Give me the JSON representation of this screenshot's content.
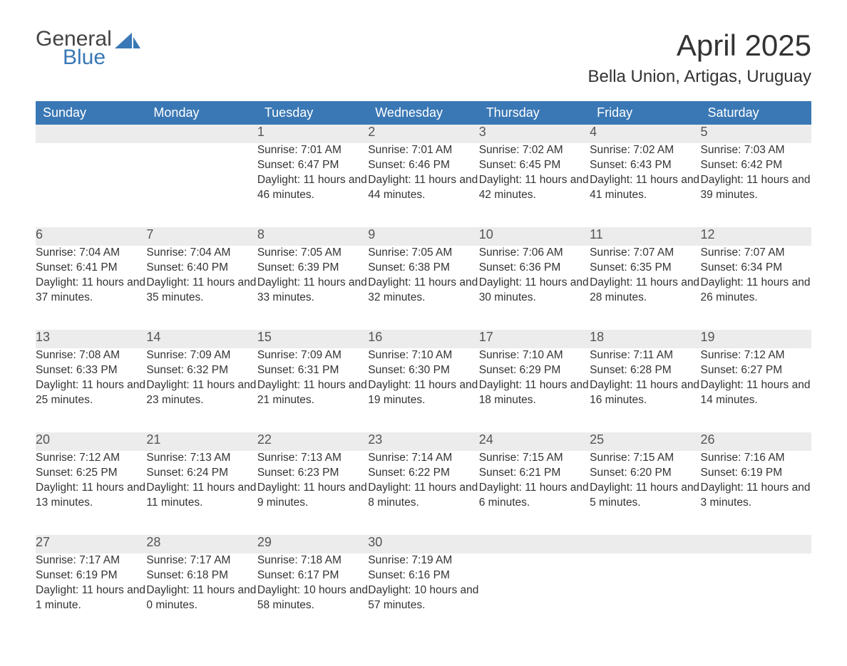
{
  "logo": {
    "line1": "General",
    "line2": "Blue"
  },
  "title": "April 2025",
  "subtitle": "Bella Union, Artigas, Uruguay",
  "colors": {
    "header_bg": "#3a78b5",
    "header_text": "#ffffff",
    "daynum_bg": "#ececec",
    "daynum_border": "#3a78b5",
    "body_text": "#333333",
    "page_bg": "#ffffff"
  },
  "day_headers": [
    "Sunday",
    "Monday",
    "Tuesday",
    "Wednesday",
    "Thursday",
    "Friday",
    "Saturday"
  ],
  "weeks": [
    [
      null,
      null,
      {
        "n": "1",
        "sunrise": "7:01 AM",
        "sunset": "6:47 PM",
        "daylight": "11 hours and 46 minutes."
      },
      {
        "n": "2",
        "sunrise": "7:01 AM",
        "sunset": "6:46 PM",
        "daylight": "11 hours and 44 minutes."
      },
      {
        "n": "3",
        "sunrise": "7:02 AM",
        "sunset": "6:45 PM",
        "daylight": "11 hours and 42 minutes."
      },
      {
        "n": "4",
        "sunrise": "7:02 AM",
        "sunset": "6:43 PM",
        "daylight": "11 hours and 41 minutes."
      },
      {
        "n": "5",
        "sunrise": "7:03 AM",
        "sunset": "6:42 PM",
        "daylight": "11 hours and 39 minutes."
      }
    ],
    [
      {
        "n": "6",
        "sunrise": "7:04 AM",
        "sunset": "6:41 PM",
        "daylight": "11 hours and 37 minutes."
      },
      {
        "n": "7",
        "sunrise": "7:04 AM",
        "sunset": "6:40 PM",
        "daylight": "11 hours and 35 minutes."
      },
      {
        "n": "8",
        "sunrise": "7:05 AM",
        "sunset": "6:39 PM",
        "daylight": "11 hours and 33 minutes."
      },
      {
        "n": "9",
        "sunrise": "7:05 AM",
        "sunset": "6:38 PM",
        "daylight": "11 hours and 32 minutes."
      },
      {
        "n": "10",
        "sunrise": "7:06 AM",
        "sunset": "6:36 PM",
        "daylight": "11 hours and 30 minutes."
      },
      {
        "n": "11",
        "sunrise": "7:07 AM",
        "sunset": "6:35 PM",
        "daylight": "11 hours and 28 minutes."
      },
      {
        "n": "12",
        "sunrise": "7:07 AM",
        "sunset": "6:34 PM",
        "daylight": "11 hours and 26 minutes."
      }
    ],
    [
      {
        "n": "13",
        "sunrise": "7:08 AM",
        "sunset": "6:33 PM",
        "daylight": "11 hours and 25 minutes."
      },
      {
        "n": "14",
        "sunrise": "7:09 AM",
        "sunset": "6:32 PM",
        "daylight": "11 hours and 23 minutes."
      },
      {
        "n": "15",
        "sunrise": "7:09 AM",
        "sunset": "6:31 PM",
        "daylight": "11 hours and 21 minutes."
      },
      {
        "n": "16",
        "sunrise": "7:10 AM",
        "sunset": "6:30 PM",
        "daylight": "11 hours and 19 minutes."
      },
      {
        "n": "17",
        "sunrise": "7:10 AM",
        "sunset": "6:29 PM",
        "daylight": "11 hours and 18 minutes."
      },
      {
        "n": "18",
        "sunrise": "7:11 AM",
        "sunset": "6:28 PM",
        "daylight": "11 hours and 16 minutes."
      },
      {
        "n": "19",
        "sunrise": "7:12 AM",
        "sunset": "6:27 PM",
        "daylight": "11 hours and 14 minutes."
      }
    ],
    [
      {
        "n": "20",
        "sunrise": "7:12 AM",
        "sunset": "6:25 PM",
        "daylight": "11 hours and 13 minutes."
      },
      {
        "n": "21",
        "sunrise": "7:13 AM",
        "sunset": "6:24 PM",
        "daylight": "11 hours and 11 minutes."
      },
      {
        "n": "22",
        "sunrise": "7:13 AM",
        "sunset": "6:23 PM",
        "daylight": "11 hours and 9 minutes."
      },
      {
        "n": "23",
        "sunrise": "7:14 AM",
        "sunset": "6:22 PM",
        "daylight": "11 hours and 8 minutes."
      },
      {
        "n": "24",
        "sunrise": "7:15 AM",
        "sunset": "6:21 PM",
        "daylight": "11 hours and 6 minutes."
      },
      {
        "n": "25",
        "sunrise": "7:15 AM",
        "sunset": "6:20 PM",
        "daylight": "11 hours and 5 minutes."
      },
      {
        "n": "26",
        "sunrise": "7:16 AM",
        "sunset": "6:19 PM",
        "daylight": "11 hours and 3 minutes."
      }
    ],
    [
      {
        "n": "27",
        "sunrise": "7:17 AM",
        "sunset": "6:19 PM",
        "daylight": "11 hours and 1 minute."
      },
      {
        "n": "28",
        "sunrise": "7:17 AM",
        "sunset": "6:18 PM",
        "daylight": "11 hours and 0 minutes."
      },
      {
        "n": "29",
        "sunrise": "7:18 AM",
        "sunset": "6:17 PM",
        "daylight": "10 hours and 58 minutes."
      },
      {
        "n": "30",
        "sunrise": "7:19 AM",
        "sunset": "6:16 PM",
        "daylight": "10 hours and 57 minutes."
      },
      null,
      null,
      null
    ]
  ],
  "labels": {
    "sunrise": "Sunrise: ",
    "sunset": "Sunset: ",
    "daylight": "Daylight: "
  }
}
